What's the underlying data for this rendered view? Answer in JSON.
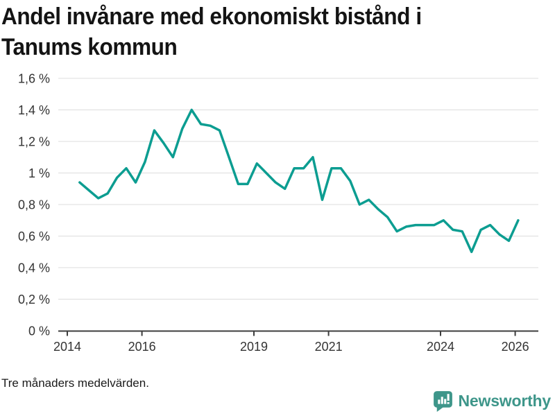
{
  "title_lines": [
    "Andel invånare med ekonomiskt bistånd i",
    "Tanums kommun"
  ],
  "footnote": "Tre månaders medelvärden.",
  "branding": {
    "logo_text": "Newsworthy",
    "logo_icon": "bar-chart-speech-bubble-icon",
    "brand_color": "#3e968a"
  },
  "colors": {
    "line": "#0c9d91",
    "grid": "#dcdcdc",
    "axis": "#3d3d3d",
    "tick_text": "#333333"
  },
  "chart_data": {
    "type": "line",
    "title": "Andel invånare med ekonomiskt bistånd i Tanums kommun",
    "note": "Tre månaders medelvärden.",
    "unit": "%",
    "grid": true,
    "legend_position": "none",
    "x_domain": [
      2014,
      2026.4
    ],
    "y_domain": [
      0,
      1.6
    ],
    "x_ticks": [
      {
        "value": 2014,
        "label": "2014"
      },
      {
        "value": 2016,
        "label": "2016"
      },
      {
        "value": 2019,
        "label": "2019"
      },
      {
        "value": 2021,
        "label": "2021"
      },
      {
        "value": 2024,
        "label": "2024"
      },
      {
        "value": 2026,
        "label": "2026"
      }
    ],
    "y_ticks": [
      {
        "value": 0,
        "label": "0 %"
      },
      {
        "value": 0.2,
        "label": "0,2 %"
      },
      {
        "value": 0.4,
        "label": "0,4 %"
      },
      {
        "value": 0.6,
        "label": "0,6 %"
      },
      {
        "value": 0.8,
        "label": "0,8 %"
      },
      {
        "value": 1,
        "label": "1 %"
      },
      {
        "value": 1.2,
        "label": "1,2 %"
      },
      {
        "value": 1.4,
        "label": "1,4 %"
      },
      {
        "value": 1.6,
        "label": "1,6 %"
      }
    ],
    "x": [
      2014.33,
      2014.58,
      2014.83,
      2015.08,
      2015.33,
      2015.58,
      2015.83,
      2016.08,
      2016.33,
      2016.58,
      2016.83,
      2017.08,
      2017.33,
      2017.58,
      2017.83,
      2018.08,
      2018.33,
      2018.58,
      2018.83,
      2019.08,
      2019.33,
      2019.58,
      2019.83,
      2020.08,
      2020.33,
      2020.58,
      2020.83,
      2021.08,
      2021.33,
      2021.58,
      2021.83,
      2022.08,
      2022.33,
      2022.58,
      2022.83,
      2023.08,
      2023.33,
      2023.58,
      2023.83,
      2024.08,
      2024.33,
      2024.58,
      2024.83,
      2025.08,
      2025.33,
      2025.58,
      2025.83,
      2026.08
    ],
    "values": [
      0.94,
      0.89,
      0.84,
      0.87,
      0.97,
      1.03,
      0.94,
      1.07,
      1.27,
      1.19,
      1.1,
      1.28,
      1.4,
      1.31,
      1.3,
      1.27,
      1.1,
      0.93,
      0.93,
      1.06,
      1.0,
      0.94,
      0.9,
      1.03,
      1.03,
      1.1,
      0.83,
      1.03,
      1.03,
      0.95,
      0.8,
      0.83,
      0.77,
      0.72,
      0.63,
      0.66,
      0.67,
      0.67,
      0.67,
      0.7,
      0.64,
      0.63,
      0.5,
      0.64,
      0.67,
      0.61,
      0.57,
      0.7
    ]
  }
}
